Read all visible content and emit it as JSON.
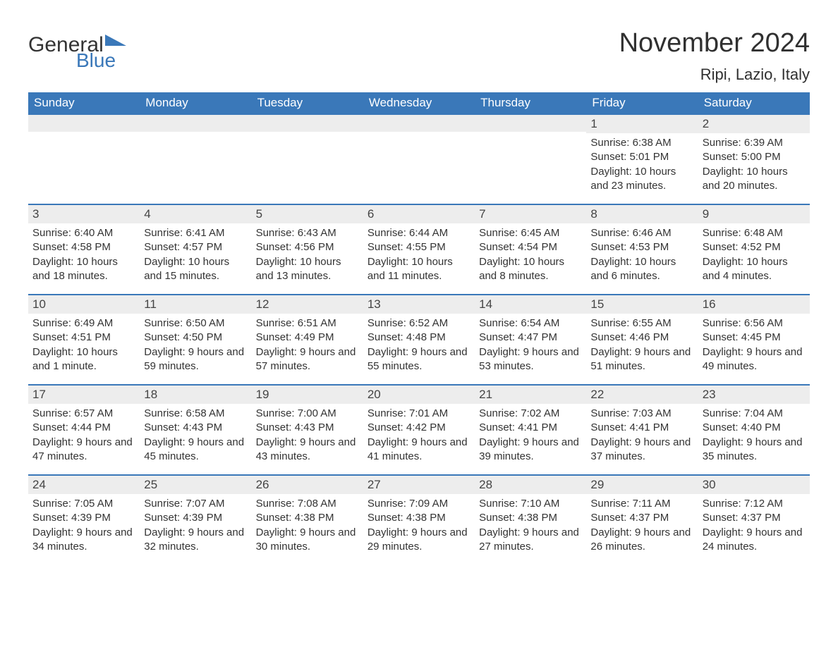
{
  "logo": {
    "word1": "General",
    "word2": "Blue",
    "icon_fill": "#3a78b9"
  },
  "title": "November 2024",
  "location": "Ripi, Lazio, Italy",
  "colors": {
    "header_bg": "#3a78b9",
    "header_text": "#ffffff",
    "daynum_bg": "#ededed",
    "daynum_border": "#3a78b9",
    "body_text": "#333333",
    "page_bg": "#ffffff"
  },
  "typography": {
    "title_fontsize": 38,
    "location_fontsize": 22,
    "header_fontsize": 17,
    "daynum_fontsize": 17,
    "cell_fontsize": 15,
    "logo_fontsize": 30
  },
  "layout": {
    "columns": 7,
    "rows": 5,
    "leading_blanks": 5
  },
  "weekdays": [
    "Sunday",
    "Monday",
    "Tuesday",
    "Wednesday",
    "Thursday",
    "Friday",
    "Saturday"
  ],
  "days": [
    {
      "n": 1,
      "sunrise": "6:38 AM",
      "sunset": "5:01 PM",
      "daylight": "10 hours and 23 minutes."
    },
    {
      "n": 2,
      "sunrise": "6:39 AM",
      "sunset": "5:00 PM",
      "daylight": "10 hours and 20 minutes."
    },
    {
      "n": 3,
      "sunrise": "6:40 AM",
      "sunset": "4:58 PM",
      "daylight": "10 hours and 18 minutes."
    },
    {
      "n": 4,
      "sunrise": "6:41 AM",
      "sunset": "4:57 PM",
      "daylight": "10 hours and 15 minutes."
    },
    {
      "n": 5,
      "sunrise": "6:43 AM",
      "sunset": "4:56 PM",
      "daylight": "10 hours and 13 minutes."
    },
    {
      "n": 6,
      "sunrise": "6:44 AM",
      "sunset": "4:55 PM",
      "daylight": "10 hours and 11 minutes."
    },
    {
      "n": 7,
      "sunrise": "6:45 AM",
      "sunset": "4:54 PM",
      "daylight": "10 hours and 8 minutes."
    },
    {
      "n": 8,
      "sunrise": "6:46 AM",
      "sunset": "4:53 PM",
      "daylight": "10 hours and 6 minutes."
    },
    {
      "n": 9,
      "sunrise": "6:48 AM",
      "sunset": "4:52 PM",
      "daylight": "10 hours and 4 minutes."
    },
    {
      "n": 10,
      "sunrise": "6:49 AM",
      "sunset": "4:51 PM",
      "daylight": "10 hours and 1 minute."
    },
    {
      "n": 11,
      "sunrise": "6:50 AM",
      "sunset": "4:50 PM",
      "daylight": "9 hours and 59 minutes."
    },
    {
      "n": 12,
      "sunrise": "6:51 AM",
      "sunset": "4:49 PM",
      "daylight": "9 hours and 57 minutes."
    },
    {
      "n": 13,
      "sunrise": "6:52 AM",
      "sunset": "4:48 PM",
      "daylight": "9 hours and 55 minutes."
    },
    {
      "n": 14,
      "sunrise": "6:54 AM",
      "sunset": "4:47 PM",
      "daylight": "9 hours and 53 minutes."
    },
    {
      "n": 15,
      "sunrise": "6:55 AM",
      "sunset": "4:46 PM",
      "daylight": "9 hours and 51 minutes."
    },
    {
      "n": 16,
      "sunrise": "6:56 AM",
      "sunset": "4:45 PM",
      "daylight": "9 hours and 49 minutes."
    },
    {
      "n": 17,
      "sunrise": "6:57 AM",
      "sunset": "4:44 PM",
      "daylight": "9 hours and 47 minutes."
    },
    {
      "n": 18,
      "sunrise": "6:58 AM",
      "sunset": "4:43 PM",
      "daylight": "9 hours and 45 minutes."
    },
    {
      "n": 19,
      "sunrise": "7:00 AM",
      "sunset": "4:43 PM",
      "daylight": "9 hours and 43 minutes."
    },
    {
      "n": 20,
      "sunrise": "7:01 AM",
      "sunset": "4:42 PM",
      "daylight": "9 hours and 41 minutes."
    },
    {
      "n": 21,
      "sunrise": "7:02 AM",
      "sunset": "4:41 PM",
      "daylight": "9 hours and 39 minutes."
    },
    {
      "n": 22,
      "sunrise": "7:03 AM",
      "sunset": "4:41 PM",
      "daylight": "9 hours and 37 minutes."
    },
    {
      "n": 23,
      "sunrise": "7:04 AM",
      "sunset": "4:40 PM",
      "daylight": "9 hours and 35 minutes."
    },
    {
      "n": 24,
      "sunrise": "7:05 AM",
      "sunset": "4:39 PM",
      "daylight": "9 hours and 34 minutes."
    },
    {
      "n": 25,
      "sunrise": "7:07 AM",
      "sunset": "4:39 PM",
      "daylight": "9 hours and 32 minutes."
    },
    {
      "n": 26,
      "sunrise": "7:08 AM",
      "sunset": "4:38 PM",
      "daylight": "9 hours and 30 minutes."
    },
    {
      "n": 27,
      "sunrise": "7:09 AM",
      "sunset": "4:38 PM",
      "daylight": "9 hours and 29 minutes."
    },
    {
      "n": 28,
      "sunrise": "7:10 AM",
      "sunset": "4:38 PM",
      "daylight": "9 hours and 27 minutes."
    },
    {
      "n": 29,
      "sunrise": "7:11 AM",
      "sunset": "4:37 PM",
      "daylight": "9 hours and 26 minutes."
    },
    {
      "n": 30,
      "sunrise": "7:12 AM",
      "sunset": "4:37 PM",
      "daylight": "9 hours and 24 minutes."
    }
  ],
  "labels": {
    "sunrise_prefix": "Sunrise: ",
    "sunset_prefix": "Sunset: ",
    "daylight_prefix": "Daylight: "
  }
}
